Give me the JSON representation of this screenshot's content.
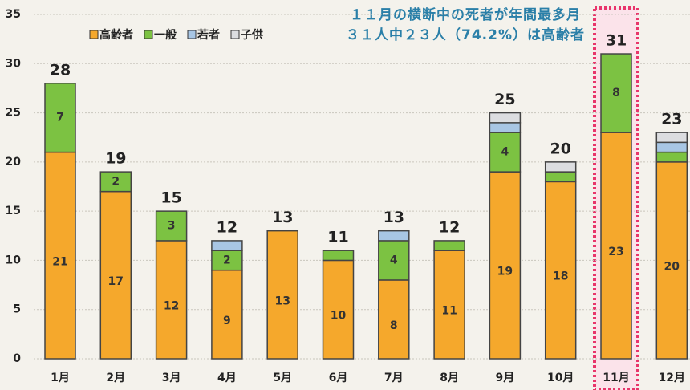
{
  "chart_data": {
    "type": "stacked_bar",
    "annotation": [
      "１１月の横断中の死者が年間最多月",
      "３１人中２３人（74.2%）は高齢者"
    ],
    "categories": [
      "1月",
      "2月",
      "3月",
      "4月",
      "5月",
      "6月",
      "7月",
      "8月",
      "9月",
      "10月",
      "11月",
      "12月"
    ],
    "series": [
      {
        "name": "高齢者",
        "color": "#f5a82c",
        "values": [
          21,
          17,
          12,
          9,
          13,
          10,
          8,
          11,
          19,
          18,
          23,
          20
        ]
      },
      {
        "name": "一般",
        "color": "#7cc242",
        "values": [
          7,
          2,
          3,
          2,
          0,
          1,
          4,
          1,
          4,
          1,
          8,
          1
        ]
      },
      {
        "name": "若者",
        "color": "#a8c6e4",
        "values": [
          0,
          0,
          0,
          1,
          0,
          0,
          1,
          0,
          1,
          0,
          0,
          1
        ]
      },
      {
        "name": "子供",
        "color": "#dcdde0",
        "values": [
          0,
          0,
          0,
          0,
          0,
          0,
          0,
          0,
          1,
          1,
          0,
          1
        ]
      }
    ],
    "totals": [
      28,
      19,
      15,
      12,
      13,
      11,
      13,
      12,
      25,
      20,
      31,
      23
    ],
    "highlight": "11月",
    "ylim": [
      0,
      35
    ],
    "yticks": [
      0,
      5,
      10,
      15,
      20,
      25,
      30,
      35
    ],
    "grid": true
  }
}
